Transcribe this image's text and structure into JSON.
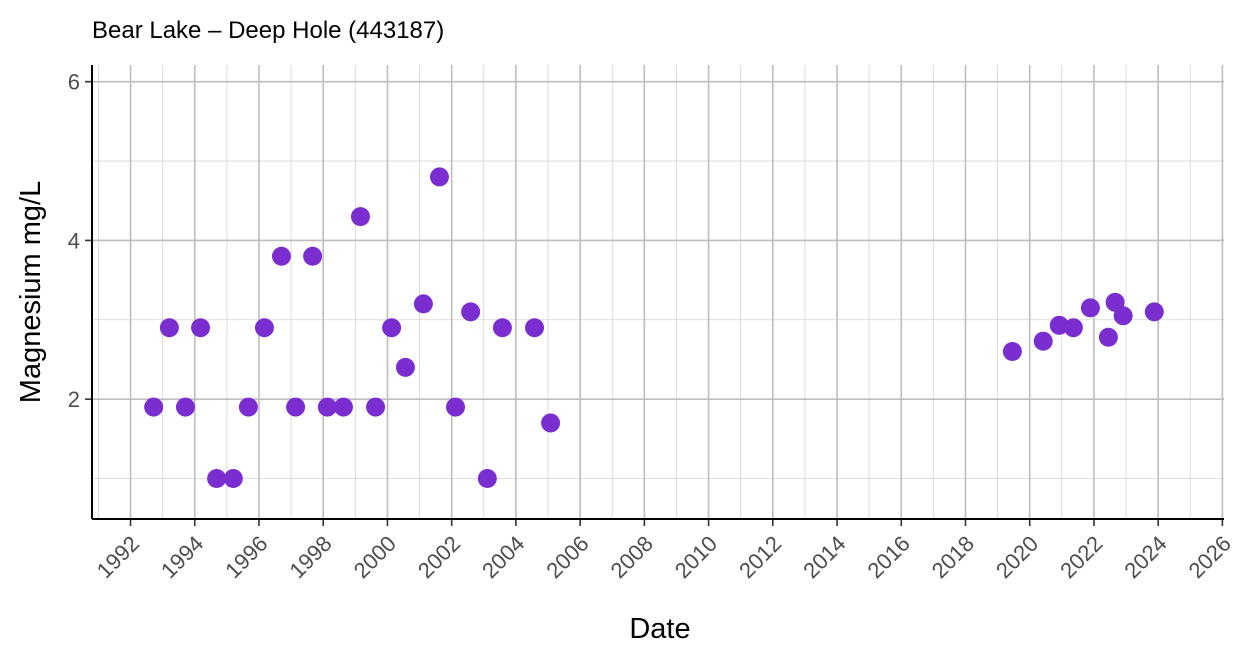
{
  "chart_data": {
    "type": "scatter",
    "title": "Bear Lake – Deep Hole (443187)",
    "x_label": "Date",
    "y_label": "Magnesium mg/L",
    "series": [
      {
        "color": "#7b2ed0",
        "x": [
          1992.72,
          1993.21,
          1993.71,
          1994.18,
          1994.68,
          1995.2,
          1995.67,
          1996.17,
          1996.7,
          1997.14,
          1997.67,
          1998.13,
          1998.63,
          1999.16,
          1999.63,
          2000.13,
          2000.56,
          2001.12,
          2001.62,
          2002.12,
          2002.59,
          2003.11,
          2003.58,
          2004.58,
          2005.08,
          2019.46,
          2020.42,
          2020.92,
          2021.36,
          2021.89,
          2022.45,
          2022.66,
          2022.91,
          2023.88
        ],
        "values": [
          1.9,
          2.9,
          1.9,
          2.9,
          1.0,
          1.0,
          1.9,
          2.9,
          3.8,
          1.9,
          3.8,
          1.9,
          1.9,
          4.3,
          1.9,
          2.9,
          2.4,
          3.2,
          4.8,
          1.9,
          3.1,
          1.0,
          2.9,
          2.9,
          1.7,
          2.6,
          2.73,
          2.93,
          2.9,
          3.15,
          2.78,
          3.22,
          3.05,
          3.1
        ]
      }
    ],
    "xlim": [
      1990.8,
      2026.05
    ],
    "xticks": [
      1992,
      1994,
      1996,
      1998,
      2000,
      2002,
      2004,
      2006,
      2008,
      2010,
      2012,
      2014,
      2016,
      2018,
      2020,
      2022,
      2024,
      2026
    ],
    "ylim": [
      0.49,
      6.21
    ],
    "yticks": [
      2,
      4,
      6
    ],
    "grid": true
  }
}
